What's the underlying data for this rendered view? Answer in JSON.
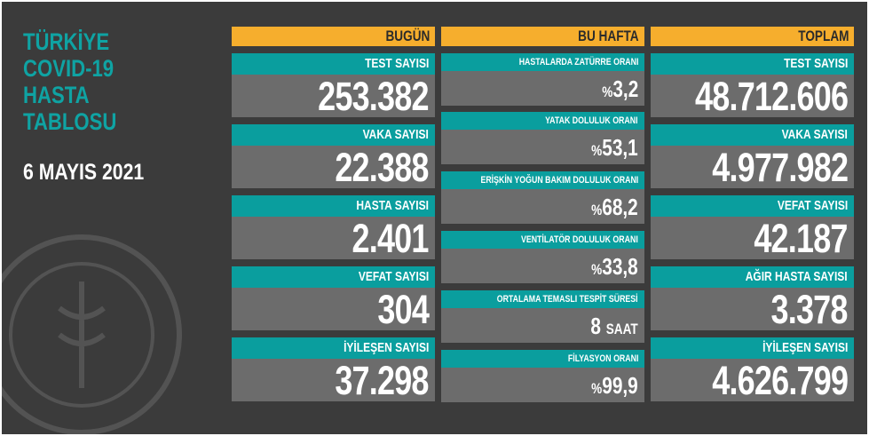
{
  "title_lines": [
    "TÜRKİYE",
    "COVID-19",
    "HASTA",
    "TABLOSU"
  ],
  "date": "6 MAYIS 2021",
  "colors": {
    "background": "#3b3b3b",
    "header": "#f6ae2d",
    "label": "#0a9e9e",
    "value_bg": "#6c6c6c",
    "title": "#0fa3a3"
  },
  "today": {
    "header": "BUGÜN",
    "items": [
      {
        "label": "TEST SAYISI",
        "value": "253.382"
      },
      {
        "label": "VAKA SAYISI",
        "value": "22.388"
      },
      {
        "label": "HASTA SAYISI",
        "value": "2.401"
      },
      {
        "label": "VEFAT SAYISI",
        "value": "304"
      },
      {
        "label": "İYİLEŞEN SAYISI",
        "value": "37.298"
      }
    ]
  },
  "week": {
    "header": "BU HAFTA",
    "items": [
      {
        "label": "HASTALARDA ZATÜRRE ORANI",
        "prefix": "%",
        "value": "3,2",
        "unit": ""
      },
      {
        "label": "YATAK DOLULUK ORANI",
        "prefix": "%",
        "value": "53,1",
        "unit": ""
      },
      {
        "label": "ERİŞKİN YOĞUN BAKIM DOLULUK ORANI",
        "prefix": "%",
        "value": "68,2",
        "unit": ""
      },
      {
        "label": "VENTİLATÖR DOLULUK ORANI",
        "prefix": "%",
        "value": "33,8",
        "unit": ""
      },
      {
        "label": "ORTALAMA TEMASLI TESPİT SÜRESİ",
        "prefix": "",
        "value": "8",
        "unit": "SAAT"
      },
      {
        "label": "FİLYASYON ORANI",
        "prefix": "%",
        "value": "99,9",
        "unit": ""
      }
    ]
  },
  "total": {
    "header": "TOPLAM",
    "items": [
      {
        "label": "TEST SAYISI",
        "value": "48.712.606"
      },
      {
        "label": "VAKA SAYISI",
        "value": "4.977.982"
      },
      {
        "label": "VEFAT SAYISI",
        "value": "42.187"
      },
      {
        "label": "AĞIR HASTA SAYISI",
        "value": "3.378"
      },
      {
        "label": "İYİLEŞEN SAYISI",
        "value": "4.626.799"
      }
    ]
  }
}
